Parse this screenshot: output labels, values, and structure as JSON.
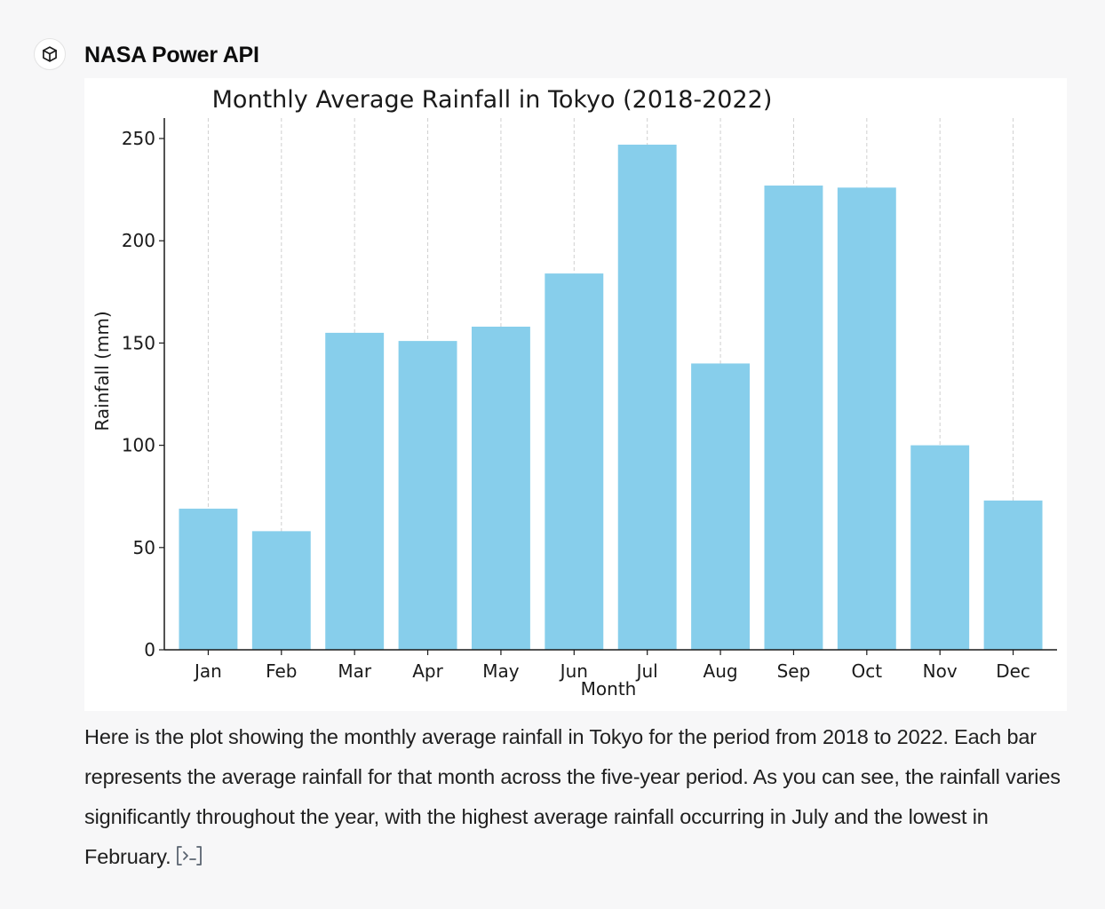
{
  "message": {
    "sender": "NASA Power API",
    "sender_icon": "cube-icon",
    "body": "Here is the plot showing the monthly average rainfall in Tokyo for the period from 2018 to 2022. Each bar represents the average rainfall for that month across the five-year period. As you can see, the rainfall varies significantly throughout the year, with the highest average rainfall occurring in July and the lowest in February.",
    "code_icon": "code-output-icon"
  },
  "colors": {
    "bar": "#87ceeb",
    "background": "#f7f7f8",
    "panel": "#ffffff",
    "grid": "#d0d0d0"
  },
  "chart_data": {
    "type": "bar",
    "title": "Monthly Average Rainfall in Tokyo (2018-2022)",
    "xlabel": "Month",
    "ylabel": "Rainfall (mm)",
    "categories": [
      "Jan",
      "Feb",
      "Mar",
      "Apr",
      "May",
      "Jun",
      "Jul",
      "Aug",
      "Sep",
      "Oct",
      "Nov",
      "Dec"
    ],
    "values": [
      69,
      58,
      155,
      151,
      158,
      184,
      247,
      140,
      227,
      226,
      100,
      73
    ],
    "ylim": [
      0,
      260
    ],
    "yticks": [
      0,
      50,
      100,
      150,
      200,
      250
    ],
    "grid": "vertical-dashed",
    "legend": false
  }
}
